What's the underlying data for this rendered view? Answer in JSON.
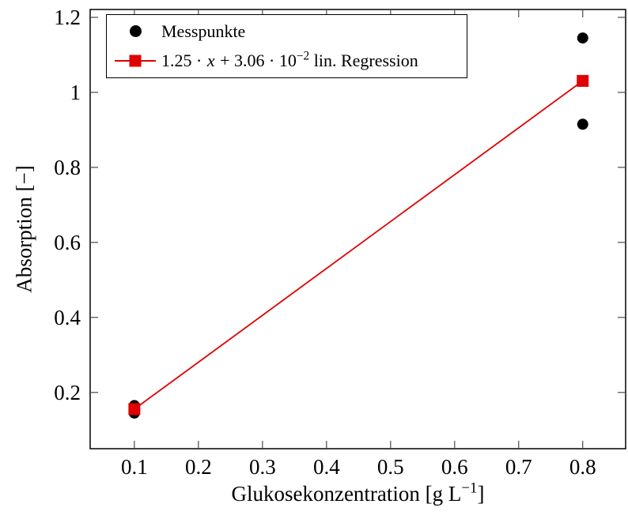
{
  "figure": {
    "background_color": "#ffffff",
    "axis_color": "#000000",
    "accent_red": "#e10000"
  },
  "axes": {
    "x": {
      "label_main": "Glukosekonzentration [g L",
      "label_sup": "−1",
      "label_end": "]"
    },
    "y": {
      "label": "Absorption [−]"
    }
  },
  "legend": {
    "messpunkte_label": "Messpunkte",
    "regression": {
      "pre": "1.25 · ",
      "var": "x",
      "mid": " + 3.06 · 10",
      "sup": "−2",
      "post": " lin. Regression"
    }
  },
  "chart_data": {
    "type": "scatter",
    "title": "",
    "xlabel": "Glukosekonzentration [g L⁻¹]",
    "ylabel": "Absorption [−]",
    "xlim": [
      0.031,
      0.867
    ],
    "ylim": [
      0.05,
      1.221
    ],
    "grid": false,
    "legend_position": "top-left",
    "x_ticks": {
      "values": [
        0.1,
        0.2,
        0.3,
        0.4,
        0.5,
        0.6,
        0.7,
        0.8
      ],
      "labels": [
        "0.1",
        "0.2",
        "0.3",
        "0.4",
        "0.5",
        "0.6",
        "0.7",
        "0.8"
      ]
    },
    "y_ticks": {
      "values": [
        0.2,
        0.4,
        0.6,
        0.8,
        1.0,
        1.2
      ],
      "labels": [
        "0.2",
        "0.4",
        "0.6",
        "0.8",
        "1",
        "1.2"
      ]
    },
    "series": [
      {
        "name": "Messpunkte",
        "type": "scatter",
        "marker": "circle",
        "color": "#000000",
        "points": [
          [
            0.1,
            0.145
          ],
          [
            0.1,
            0.165
          ],
          [
            0.8,
            0.915
          ],
          [
            0.8,
            1.145
          ]
        ]
      },
      {
        "name": "1.25 · x + 3.06 · 10⁻² lin. Regression",
        "type": "line",
        "marker": "square",
        "color": "#e10000",
        "slope": 1.25,
        "intercept": 0.0306,
        "points": [
          [
            0.1,
            0.1556
          ],
          [
            0.8,
            1.0306
          ]
        ]
      }
    ]
  }
}
